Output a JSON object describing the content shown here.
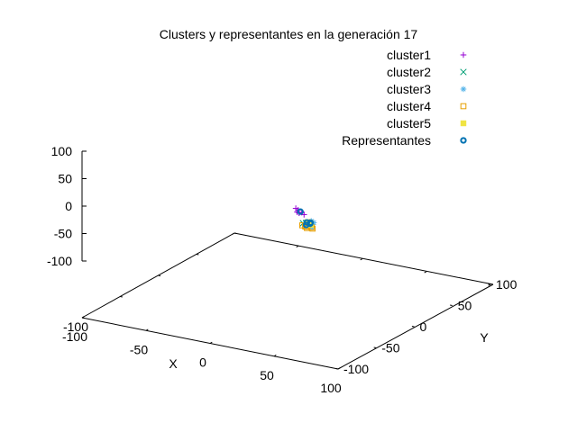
{
  "chart_data": {
    "type": "scatter",
    "title": "Clusters y representantes en la generación 17",
    "xlabel": "X",
    "ylabel": "Y",
    "xlim": [
      -100,
      100
    ],
    "ylim": [
      -100,
      100
    ],
    "zlim": [
      -100,
      100
    ],
    "x_ticks": [
      "-100",
      "-50",
      "0",
      "50",
      "100"
    ],
    "y_ticks": [
      "-100",
      "-50",
      "0",
      "50",
      "100"
    ],
    "z_ticks": [
      "100",
      "50",
      "0",
      "-50",
      "-100"
    ],
    "grid": false,
    "legend_position": "top-right",
    "series": [
      {
        "name": "cluster1",
        "marker": "plus",
        "color": "#9400d3",
        "points": [
          [
            -8,
            26,
            45
          ],
          [
            -5,
            24,
            45
          ],
          [
            -3,
            22,
            42
          ],
          [
            -1,
            22,
            44
          ],
          [
            -4,
            21,
            44
          ],
          [
            -2,
            20,
            45
          ],
          [
            2,
            20,
            43
          ]
        ]
      },
      {
        "name": "cluster2",
        "marker": "cross",
        "color": "#009e73",
        "points": [
          [
            6,
            16,
            32
          ],
          [
            5,
            18,
            31
          ],
          [
            7,
            15,
            33
          ],
          [
            3,
            17,
            30
          ],
          [
            8,
            18,
            30
          ]
        ]
      },
      {
        "name": "cluster3",
        "marker": "star",
        "color": "#56b4e9",
        "points": [
          [
            10,
            16,
            38
          ],
          [
            12,
            16,
            36
          ],
          [
            11,
            14,
            34
          ],
          [
            13,
            12,
            36
          ],
          [
            14,
            10,
            33
          ],
          [
            12,
            14,
            31
          ]
        ]
      },
      {
        "name": "cluster4",
        "marker": "square-open",
        "color": "#e69f00",
        "points": [
          [
            4,
            18,
            24
          ],
          [
            3,
            16,
            27
          ],
          [
            6,
            16,
            26
          ],
          [
            8,
            14,
            33
          ],
          [
            12,
            13,
            30
          ],
          [
            9,
            12,
            28
          ],
          [
            14,
            11,
            30
          ]
        ]
      },
      {
        "name": "cluster5",
        "marker": "square-filled",
        "color": "#f0e442",
        "points": [
          [
            10,
            15,
            35
          ],
          [
            11,
            13,
            37
          ],
          [
            8,
            15,
            36
          ],
          [
            12,
            12,
            35
          ],
          [
            9,
            13,
            38
          ]
        ]
      },
      {
        "name": "Representantes",
        "marker": "circle-open",
        "color": "#0072b2",
        "points": [
          [
            -2,
            22,
            45
          ],
          [
            6,
            17,
            33
          ],
          [
            10,
            15,
            36
          ],
          [
            6,
            16,
            29
          ],
          [
            11,
            13,
            36
          ]
        ]
      }
    ]
  }
}
